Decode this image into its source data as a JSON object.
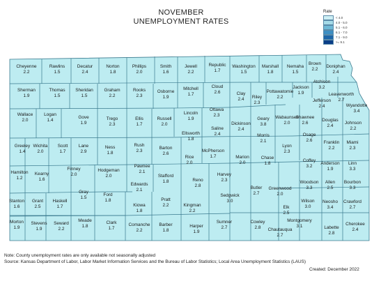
{
  "title": {
    "line1": "NOVEMBER",
    "line2": "UNEMPLOYMENT RATES"
  },
  "legend": {
    "title": "Rate",
    "items": [
      {
        "label": "< 4.0",
        "color": "#cdeff4"
      },
      {
        "label": "4.0 - 5.0",
        "color": "#a6dbe8"
      },
      {
        "label": "5.1 - 6.0",
        "color": "#6fb9d6"
      },
      {
        "label": "6.1 - 7.0",
        "color": "#3e8fc2"
      },
      {
        "label": "7.1 - 9.0",
        "color": "#1d66a8"
      },
      {
        "label": ">= 9.1",
        "color": "#0b3e87"
      }
    ]
  },
  "colors": {
    "fill": "#bdecf1",
    "stroke": "#3a7a8f"
  },
  "counties": [
    {
      "name": "Cheyenne",
      "value": "2.2"
    },
    {
      "name": "Rawlins",
      "value": "1.5"
    },
    {
      "name": "Decatur",
      "value": "2.4"
    },
    {
      "name": "Norton",
      "value": "1.8"
    },
    {
      "name": "Phillips",
      "value": "2.0"
    },
    {
      "name": "Smith",
      "value": "1.6"
    },
    {
      "name": "Jewell",
      "value": "2.2"
    },
    {
      "name": "Republic",
      "value": "1.7"
    },
    {
      "name": "Washington",
      "value": "1.5"
    },
    {
      "name": "Marshall",
      "value": "1.8"
    },
    {
      "name": "Nemaha",
      "value": "1.5"
    },
    {
      "name": "Brown",
      "value": "2.2"
    },
    {
      "name": "Doniphan",
      "value": "2.4"
    },
    {
      "name": "Sherman",
      "value": "1.9"
    },
    {
      "name": "Thomas",
      "value": "1.5"
    },
    {
      "name": "Sheridan",
      "value": "1.5"
    },
    {
      "name": "Graham",
      "value": "2.2"
    },
    {
      "name": "Rooks",
      "value": "2.3"
    },
    {
      "name": "Osborne",
      "value": "1.9"
    },
    {
      "name": "Mitchell",
      "value": "1.7"
    },
    {
      "name": "Cloud",
      "value": "2.6"
    },
    {
      "name": "Clay",
      "value": "2.4"
    },
    {
      "name": "Riley",
      "value": "2.3"
    },
    {
      "name": "Pottawatomie",
      "value": "2.2"
    },
    {
      "name": "Jackson",
      "value": "1.9"
    },
    {
      "name": "Atchison",
      "value": "3.2"
    },
    {
      "name": "Jefferson",
      "value": "2.4"
    },
    {
      "name": "Leavenworth",
      "value": "2.7"
    },
    {
      "name": "Wyandotte",
      "value": "3.4"
    },
    {
      "name": "Wallace",
      "value": "2.0"
    },
    {
      "name": "Logan",
      "value": "1.4"
    },
    {
      "name": "Gove",
      "value": "1.9"
    },
    {
      "name": "Trego",
      "value": "2.3"
    },
    {
      "name": "Ellis",
      "value": "1.7"
    },
    {
      "name": "Russell",
      "value": "2.0"
    },
    {
      "name": "Lincoln",
      "value": "1.9"
    },
    {
      "name": "Ottawa",
      "value": "2.3"
    },
    {
      "name": "Dickinson",
      "value": "2.4"
    },
    {
      "name": "Geary",
      "value": "3.8"
    },
    {
      "name": "Wabaunsee",
      "value": "2.0"
    },
    {
      "name": "Shawnee",
      "value": "2.6"
    },
    {
      "name": "Douglas",
      "value": "2.4"
    },
    {
      "name": "Johnson",
      "value": "2.2"
    },
    {
      "name": "Greeley",
      "value": "1.4"
    },
    {
      "name": "Wichita",
      "value": "2.0"
    },
    {
      "name": "Scott",
      "value": "1.7"
    },
    {
      "name": "Lane",
      "value": "2.9"
    },
    {
      "name": "Ness",
      "value": "1.8"
    },
    {
      "name": "Rush",
      "value": "2.3"
    },
    {
      "name": "Barton",
      "value": "2.6"
    },
    {
      "name": "Ellsworth",
      "value": "1.8"
    },
    {
      "name": "Saline",
      "value": "2.4"
    },
    {
      "name": "Morris",
      "value": "2.1"
    },
    {
      "name": "Lyon",
      "value": "2.3"
    },
    {
      "name": "Osage",
      "value": "2.6"
    },
    {
      "name": "Franklin",
      "value": "2.2"
    },
    {
      "name": "Miami",
      "value": "2.3"
    },
    {
      "name": "Hamilton",
      "value": "1.2"
    },
    {
      "name": "Kearny",
      "value": "1.6"
    },
    {
      "name": "Finney",
      "value": "2.0"
    },
    {
      "name": "Hodgeman",
      "value": "2.0"
    },
    {
      "name": "Pawnee",
      "value": "2.1"
    },
    {
      "name": "Stafford",
      "value": "1.8"
    },
    {
      "name": "Rice",
      "value": "2.0"
    },
    {
      "name": "McPherson",
      "value": "1.7"
    },
    {
      "name": "Marion",
      "value": "2.0"
    },
    {
      "name": "Chase",
      "value": "1.8"
    },
    {
      "name": "Coffey",
      "value": "3.2"
    },
    {
      "name": "Anderson",
      "value": "1.9"
    },
    {
      "name": "Linn",
      "value": "3.3"
    },
    {
      "name": "Gray",
      "value": "1.5"
    },
    {
      "name": "Edwards",
      "value": "2.1"
    },
    {
      "name": "Reno",
      "value": "2.8"
    },
    {
      "name": "Harvey",
      "value": "2.3"
    },
    {
      "name": "Greenwood",
      "value": "2.0"
    },
    {
      "name": "Woodson",
      "value": "3.3"
    },
    {
      "name": "Allen",
      "value": "2.5"
    },
    {
      "name": "Bourbon",
      "value": "3.3"
    },
    {
      "name": "Stanton",
      "value": "1.6"
    },
    {
      "name": "Grant",
      "value": "2.5"
    },
    {
      "name": "Haskell",
      "value": "1.7"
    },
    {
      "name": "Ford",
      "value": "1.8"
    },
    {
      "name": "Kiowa",
      "value": "1.8"
    },
    {
      "name": "Pratt",
      "value": "2.2"
    },
    {
      "name": "Kingman",
      "value": "2.2"
    },
    {
      "name": "Sedgwick",
      "value": "3.0"
    },
    {
      "name": "Butler",
      "value": "2.7"
    },
    {
      "name": "Wilson",
      "value": "3.0"
    },
    {
      "name": "Neosho",
      "value": "3.4"
    },
    {
      "name": "Crawford",
      "value": "2.7"
    },
    {
      "name": "Elk",
      "value": "2.5"
    },
    {
      "name": "Morton",
      "value": "1.9"
    },
    {
      "name": "Stevens",
      "value": "1.9"
    },
    {
      "name": "Seward",
      "value": "2.2"
    },
    {
      "name": "Meade",
      "value": "1.8"
    },
    {
      "name": "Clark",
      "value": "1.7"
    },
    {
      "name": "Comanche",
      "value": "2.2"
    },
    {
      "name": "Barber",
      "value": "1.8"
    },
    {
      "name": "Harper",
      "value": "1.9"
    },
    {
      "name": "Sumner",
      "value": "2.7"
    },
    {
      "name": "Cowley",
      "value": "2.8"
    },
    {
      "name": "Chautauqua",
      "value": "2.7"
    },
    {
      "name": "Montgomery",
      "value": "3.1"
    },
    {
      "name": "Labette",
      "value": "2.8"
    },
    {
      "name": "Cherokee",
      "value": "2.4"
    }
  ],
  "notes": {
    "note": "Note: County unemployment rates are only available not seasonally adjusted",
    "source": "Source: Kansas Department of Labor, Labor Market Information Services and the Bureau of Labor Statistics; Local Area Unemployment Statistics (LAUS)",
    "created": "Created: December 2022"
  }
}
